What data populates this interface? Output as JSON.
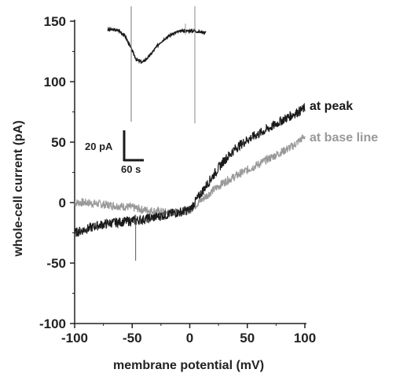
{
  "chart_data": {
    "type": "line",
    "xlabel": "membrane potential (mV)",
    "ylabel": "whole-cell current (pA)",
    "xlim": [
      -100,
      100
    ],
    "ylim": [
      -100,
      150
    ],
    "x_ticks": [
      -100,
      -50,
      0,
      50,
      100
    ],
    "y_ticks": [
      -100,
      -50,
      0,
      50,
      100,
      150
    ],
    "x_tick_labels": [
      "-100",
      "-50",
      "0",
      "50",
      "100"
    ],
    "y_tick_labels": [
      "-100",
      "-50",
      "0",
      "50",
      "100",
      "150"
    ],
    "grid": false,
    "series": [
      {
        "name": "at peak",
        "color": "#1a1a1a",
        "x": [
          -100,
          -90,
          -80,
          -70,
          -60,
          -50,
          -40,
          -30,
          -20,
          -10,
          0,
          10,
          20,
          30,
          40,
          50,
          60,
          70,
          80,
          90,
          100
        ],
        "y": [
          -25,
          -22,
          -19,
          -17,
          -16,
          -15,
          -14,
          -12,
          -10,
          -8,
          -6,
          8,
          22,
          35,
          45,
          52,
          57,
          62,
          68,
          73,
          78
        ]
      },
      {
        "name": "at base line",
        "color": "#999999",
        "x": [
          -100,
          -90,
          -80,
          -70,
          -60,
          -50,
          -40,
          -30,
          -20,
          -10,
          0,
          10,
          20,
          30,
          40,
          50,
          60,
          70,
          80,
          90,
          100
        ],
        "y": [
          0,
          0,
          -1,
          -2,
          -3,
          -4,
          -6,
          -7,
          -8,
          -8,
          -6,
          2,
          10,
          17,
          22,
          27,
          32,
          37,
          42,
          47,
          55
        ]
      }
    ],
    "inset": {
      "type": "line",
      "description_labels": {
        "y_scale": "20 pA",
        "x_scale": "60 s"
      },
      "trace_y_pA": [
        143,
        143,
        142,
        138,
        128,
        118,
        116,
        120,
        126,
        132,
        136,
        139,
        141,
        142,
        142,
        142,
        141,
        141
      ]
    }
  }
}
